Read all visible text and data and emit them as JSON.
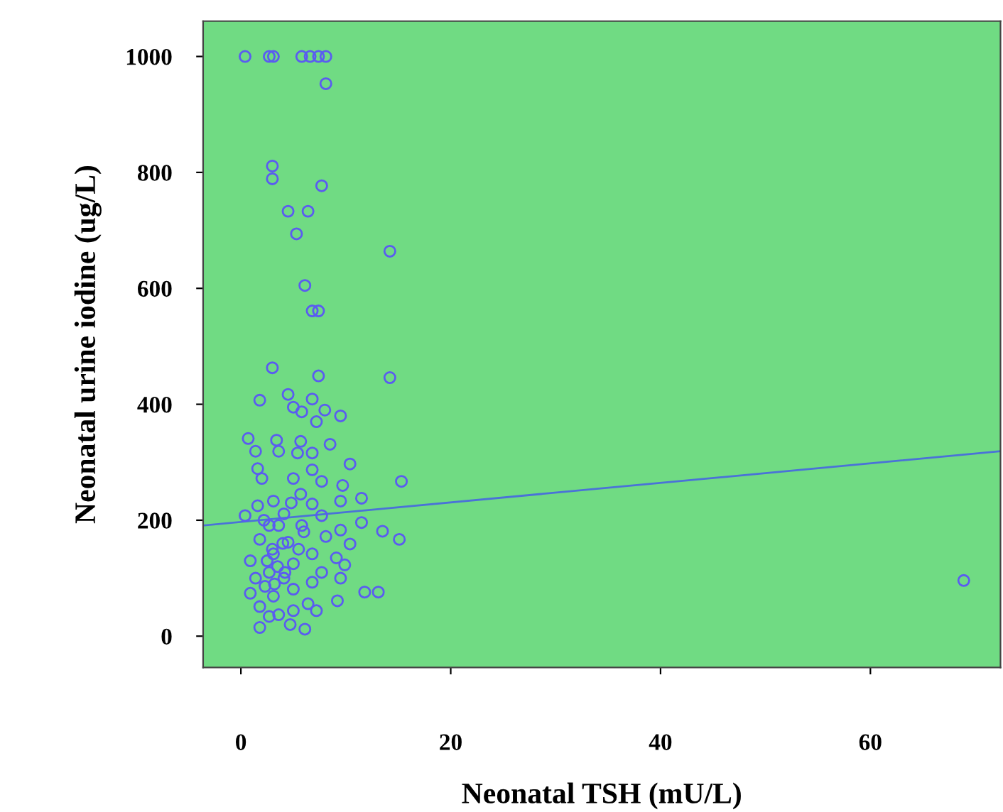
{
  "chart_data": {
    "type": "scatter",
    "xlabel": "Neonatal TSH (mU/L)",
    "ylabel": "Neonatal urine iodine (ug/L)",
    "xlim": [
      -3.6,
      72.4
    ],
    "ylim": [
      -54,
      1061
    ],
    "xticks": [
      0,
      20,
      40,
      60
    ],
    "yticks": [
      0,
      200,
      400,
      600,
      800,
      1000
    ],
    "grid": false,
    "series": [
      {
        "marker": "circle",
        "color": "#5a5cf0",
        "x": [
          0.4,
          2.7,
          3.1,
          5.8,
          6.6,
          7.4,
          8.1,
          8.1,
          3.0,
          3.0,
          7.7,
          4.5,
          6.4,
          5.3,
          14.2,
          6.1,
          6.8,
          7.4,
          3.0,
          7.4,
          14.2,
          1.8,
          4.5,
          6.8,
          5.0,
          5.8,
          8.0,
          9.5,
          7.2,
          0.7,
          3.4,
          5.7,
          8.5,
          1.4,
          3.6,
          5.4,
          6.8,
          10.4,
          1.6,
          6.8,
          2.0,
          5.0,
          15.3,
          7.7,
          9.7,
          5.7,
          11.5,
          9.5,
          3.1,
          6.8,
          1.6,
          0.4,
          4.1,
          7.7,
          11.5,
          5.8,
          2.7,
          9.5,
          13.5,
          15.1,
          8.1,
          1.8,
          4.5,
          10.4,
          3.1,
          6.8,
          9.1,
          0.9,
          5.0,
          9.9,
          2.7,
          7.7,
          1.4,
          4.1,
          9.5,
          6.8,
          2.3,
          5.0,
          11.8,
          13.1,
          0.9,
          3.1,
          6.4,
          9.2,
          1.8,
          5.0,
          2.7,
          7.2,
          1.8,
          4.7,
          6.1,
          3.6,
          3.6,
          3.0,
          3.5,
          4.0,
          2.5,
          4.2,
          3.2,
          5.5,
          6.0,
          2.2,
          4.8,
          68.9
        ],
        "values": [
          1000,
          1000,
          1000,
          1000,
          1000,
          1000,
          1000,
          953,
          811,
          789,
          777,
          733,
          733,
          694,
          664,
          605,
          561,
          561,
          463,
          449,
          446,
          407,
          417,
          409,
          395,
          387,
          390,
          380,
          370,
          341,
          338,
          336,
          331,
          319,
          319,
          316,
          316,
          297,
          289,
          287,
          272,
          272,
          267,
          267,
          260,
          245,
          238,
          233,
          233,
          228,
          225,
          208,
          211,
          208,
          196,
          191,
          191,
          183,
          181,
          167,
          172,
          167,
          162,
          159,
          142,
          142,
          135,
          130,
          125,
          123,
          110,
          110,
          100,
          100,
          100,
          93,
          86,
          81,
          76,
          76,
          74,
          69,
          56,
          61,
          51,
          44,
          34,
          44,
          15,
          20,
          12,
          37,
          191,
          150,
          120,
          160,
          130,
          110,
          90,
          150,
          180,
          200,
          230,
          96
        ]
      },
      {
        "type": "line",
        "color": "#4a72d8",
        "x": [
          -3.6,
          72.4
        ],
        "values": [
          191,
          319
        ]
      }
    ]
  }
}
